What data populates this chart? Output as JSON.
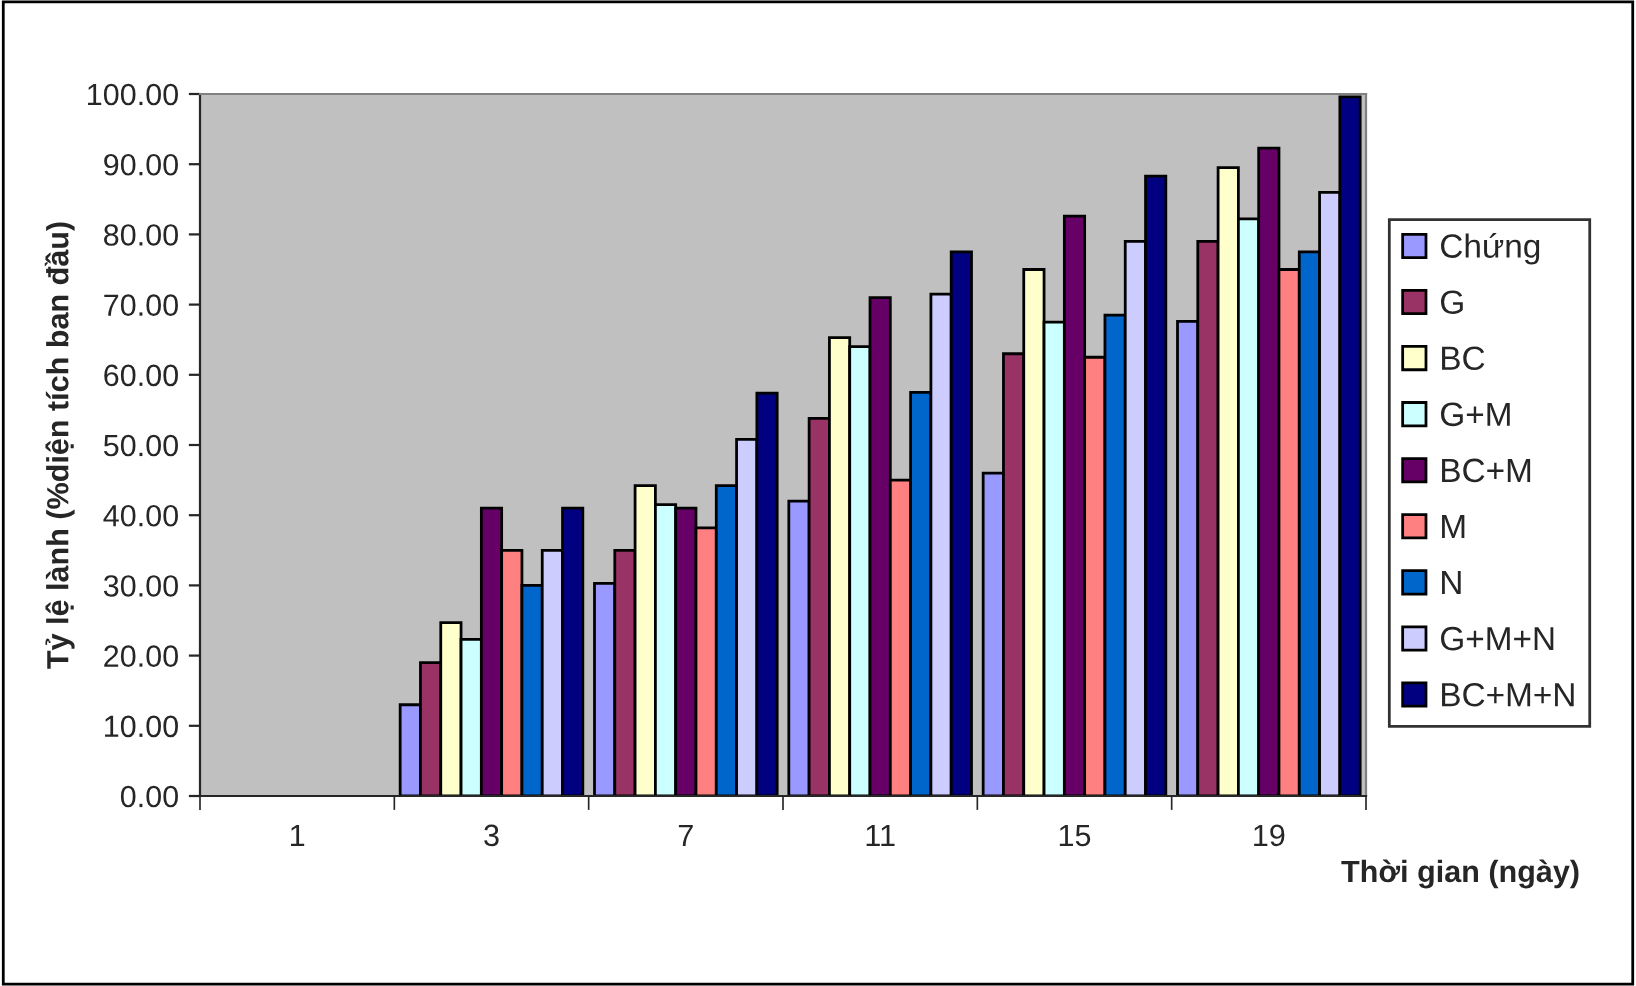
{
  "chart_data": {
    "type": "bar",
    "xlabel": "Thời gian (ngày)",
    "ylabel": "Tỷ lệ lành (%diện tích ban đầu)",
    "categories": [
      "1",
      "3",
      "7",
      "11",
      "15",
      "19"
    ],
    "series": [
      {
        "name": "Chứng",
        "color": "#9999ff",
        "values": [
          null,
          13,
          30.3,
          42,
          46,
          67.6
        ]
      },
      {
        "name": "G",
        "color": "#993366",
        "values": [
          null,
          19,
          35,
          53.8,
          63,
          79
        ]
      },
      {
        "name": "BC",
        "color": "#ffffcc",
        "values": [
          null,
          24.7,
          44.2,
          65.3,
          75,
          89.5
        ]
      },
      {
        "name": "G+M",
        "color": "#ccffff",
        "values": [
          null,
          22.3,
          41.5,
          64,
          67.5,
          82.2
        ]
      },
      {
        "name": "BC+M",
        "color": "#660066",
        "values": [
          null,
          41,
          41,
          71,
          82.6,
          92.3
        ]
      },
      {
        "name": "M",
        "color": "#ff8080",
        "values": [
          null,
          35,
          38.2,
          45,
          62.5,
          75
        ]
      },
      {
        "name": "N",
        "color": "#0066cc",
        "values": [
          null,
          30,
          44.2,
          57.5,
          68.5,
          77.5
        ]
      },
      {
        "name": "G+M+N",
        "color": "#ccccff",
        "values": [
          null,
          35,
          50.8,
          71.5,
          79,
          86
        ]
      },
      {
        "name": "BC+M+N",
        "color": "#000080",
        "values": [
          null,
          41,
          57.4,
          77.5,
          88.3,
          99.6
        ]
      }
    ],
    "ylim": [
      0,
      100
    ],
    "yticks": [
      {
        "value": 0,
        "label": "0.00"
      },
      {
        "value": 10,
        "label": "10.00"
      },
      {
        "value": 20,
        "label": "20.00"
      },
      {
        "value": 30,
        "label": "30.00"
      },
      {
        "value": 40,
        "label": "40.00"
      },
      {
        "value": 50,
        "label": "50.00"
      },
      {
        "value": 60,
        "label": "60.00"
      },
      {
        "value": 70,
        "label": "70.00"
      },
      {
        "value": 80,
        "label": "80.00"
      },
      {
        "value": 90,
        "label": "90.00"
      },
      {
        "value": 100,
        "label": "100.00"
      }
    ],
    "grid": false,
    "legend": "right"
  }
}
